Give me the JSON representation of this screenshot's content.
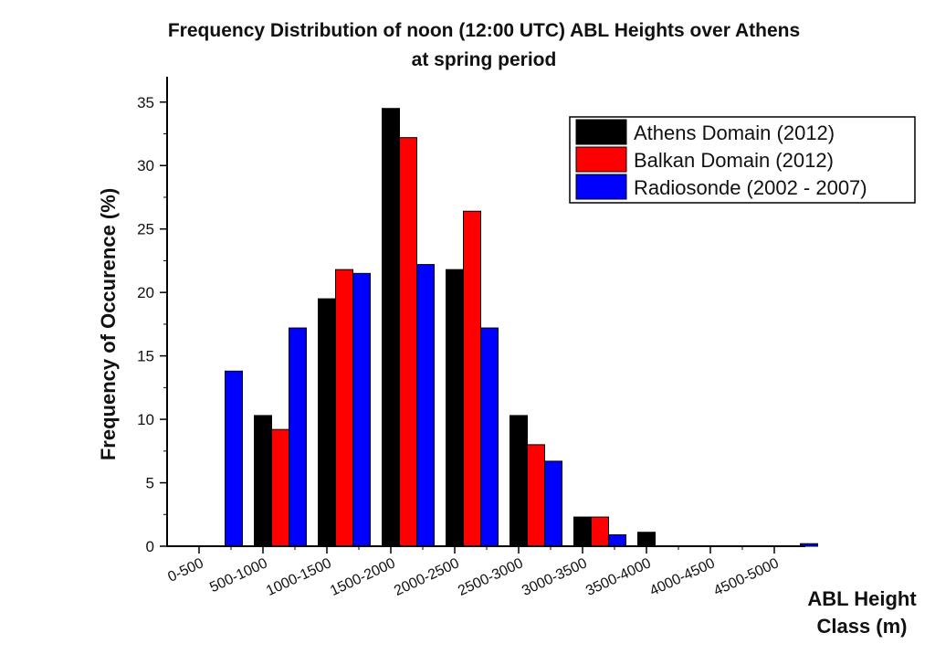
{
  "chart_data": {
    "type": "bar",
    "title": "Frequency Distribution of noon (12:00 UTC) ABL Heights over Athens",
    "subtitle": "at spring period",
    "xlabel_line1": "ABL Height",
    "xlabel_line2": "Class (m)",
    "ylabel": "Frequency of Occurence (%)",
    "ylim": [
      0,
      37
    ],
    "yticks": [
      0,
      5,
      10,
      15,
      20,
      25,
      30,
      35
    ],
    "categories": [
      "0-500",
      "500-1000",
      "1000-1500",
      "1500-2000",
      "2000-2500",
      "2500-3000",
      "3000-3500",
      "3500-4000",
      "4000-4500",
      "4500-5000"
    ],
    "series": [
      {
        "name": "Athens Domain (2012)",
        "color": "#000000",
        "values": [
          0,
          10.3,
          19.5,
          34.5,
          21.8,
          10.3,
          2.3,
          1.1,
          0,
          0
        ]
      },
      {
        "name": "Balkan Domain (2012)",
        "color": "#ff0000",
        "values": [
          0,
          9.2,
          21.8,
          32.2,
          26.4,
          8.0,
          2.3,
          0,
          0,
          0
        ]
      },
      {
        "name": "Radiosonde (2002 - 2007)",
        "color": "#0000ff",
        "values": [
          13.8,
          17.2,
          21.5,
          22.2,
          17.2,
          6.7,
          0.9,
          0,
          0,
          0.2
        ]
      }
    ],
    "legend_position": "top-right",
    "grid": false
  }
}
